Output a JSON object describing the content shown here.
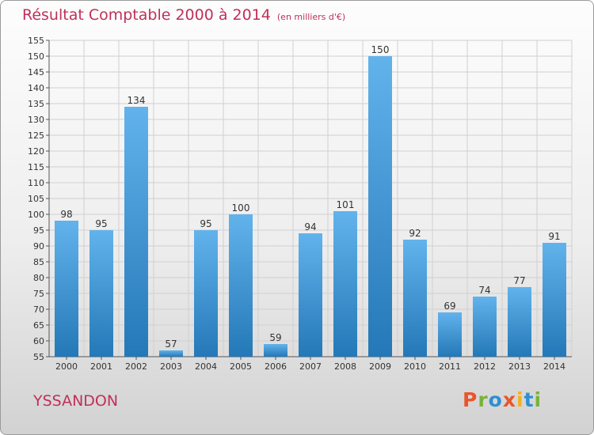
{
  "header": {
    "title": "Résultat Comptable 2000 à 2014",
    "unit": "(en milliers d'€)"
  },
  "commune": "YSSANDON",
  "logo": {
    "letters": [
      "P",
      "r",
      "o",
      "x",
      "i",
      "t",
      "i"
    ],
    "colors": [
      "#e8572b",
      "#7ab23c",
      "#2f8fd3",
      "#e8572b",
      "#f2b21d",
      "#2f8fd3",
      "#7ab23c"
    ]
  },
  "colors": {
    "bar_light": "#62b3ec",
    "bar_dark": "#2478b7",
    "title": "#c0305a"
  },
  "chart_data": {
    "type": "bar",
    "title": "Résultat Comptable 2000 à 2014 (en milliers d'€)",
    "xlabel": "",
    "ylabel": "",
    "categories": [
      "2000",
      "2001",
      "2002",
      "2003",
      "2004",
      "2005",
      "2006",
      "2007",
      "2008",
      "2009",
      "2010",
      "2011",
      "2012",
      "2013",
      "2014"
    ],
    "values": [
      98,
      95,
      134,
      57,
      95,
      100,
      59,
      94,
      101,
      150,
      92,
      69,
      74,
      77,
      91
    ],
    "ylim": [
      55,
      155
    ],
    "yticks": [
      55,
      60,
      65,
      70,
      75,
      80,
      85,
      90,
      95,
      100,
      105,
      110,
      115,
      120,
      125,
      130,
      135,
      140,
      145,
      150,
      155
    ],
    "grid": true
  }
}
